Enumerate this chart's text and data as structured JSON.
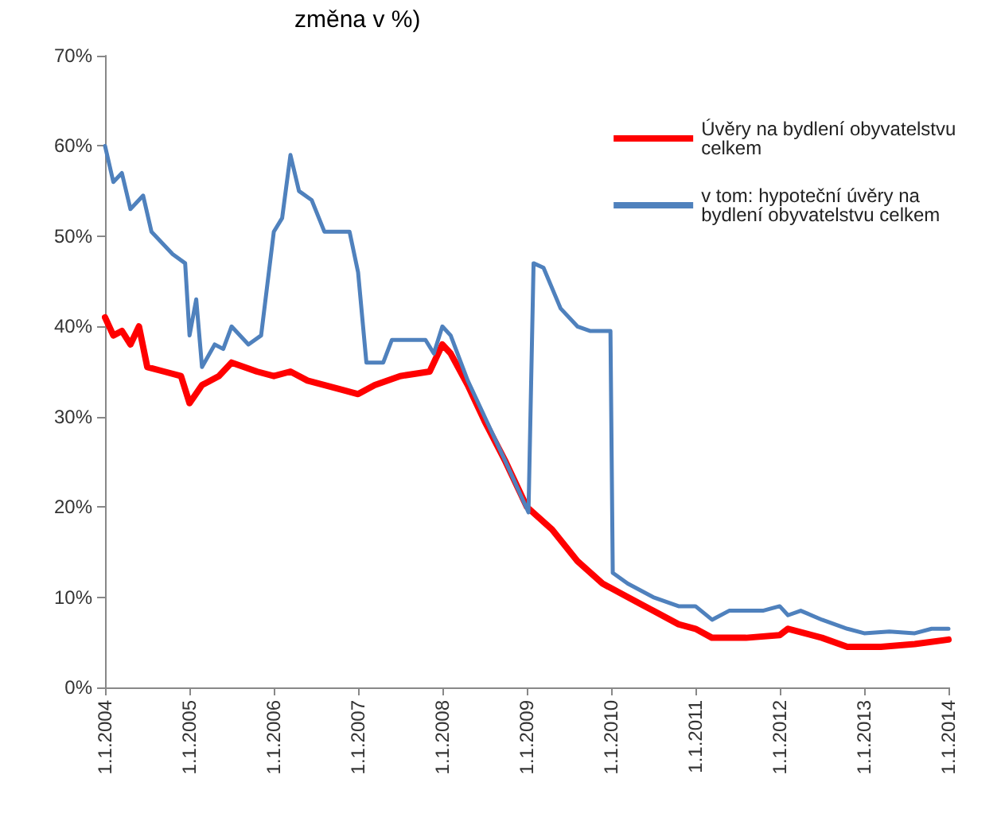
{
  "chart_data": {
    "type": "line",
    "title": "změna v %)",
    "series": [
      {
        "name": "Úvěry na bydlení obyvatelstvu celkem",
        "color": "#ff0000",
        "x": [
          "2004-01-01",
          "2004-02-06",
          "2004-03-14",
          "2004-04-20",
          "2004-05-27",
          "2004-07-02",
          "2004-09-13",
          "2004-11-25",
          "2005-01-01",
          "2005-02-24",
          "2005-05-08",
          "2005-07-02",
          "2005-10-20",
          "2006-01-01",
          "2006-03-14",
          "2006-05-27",
          "2006-10-20",
          "2007-01-01",
          "2007-03-14",
          "2007-07-02",
          "2007-11-07",
          "2008-01-01",
          "2008-02-06",
          "2008-04-20",
          "2008-07-02",
          "2008-10-01",
          "2009-01-01",
          "2009-04-20",
          "2009-08-08",
          "2009-11-25",
          "2010-03-14",
          "2010-07-02",
          "2010-10-20",
          "2011-01-01",
          "2011-03-14",
          "2011-08-08",
          "2012-01-01",
          "2012-02-06",
          "2012-07-02",
          "2012-10-20",
          "2013-03-14",
          "2013-08-08",
          "2014-01-01"
        ],
        "values": [
          41,
          39,
          39.5,
          38,
          40,
          35.5,
          35,
          34.5,
          31.5,
          33.5,
          34.5,
          36,
          35,
          34.5,
          35,
          34,
          33,
          32.5,
          33.5,
          34.5,
          35,
          38,
          37,
          33.5,
          29.5,
          25,
          20,
          17.5,
          14,
          11.5,
          10,
          8.5,
          7,
          6.5,
          5.5,
          5.5,
          5.8,
          6.5,
          5.5,
          4.5,
          4.5,
          4.8,
          5.3
        ]
      },
      {
        "name": "v tom: hypoteční úvěry na bydlení obyvatelstvu celkem",
        "color": "#4f81bd",
        "x": [
          "2004-01-01",
          "2004-02-06",
          "2004-03-14",
          "2004-04-20",
          "2004-06-14",
          "2004-07-20",
          "2004-10-20",
          "2004-12-13",
          "2005-01-01",
          "2005-01-30",
          "2005-02-24",
          "2005-04-20",
          "2005-05-27",
          "2005-07-02",
          "2005-09-13",
          "2005-11-07",
          "2006-01-01",
          "2006-02-06",
          "2006-03-14",
          "2006-04-20",
          "2006-06-14",
          "2006-08-08",
          "2006-11-25",
          "2007-01-01",
          "2007-02-06",
          "2007-04-20",
          "2007-05-27",
          "2007-10-20",
          "2007-11-25",
          "2008-01-01",
          "2008-02-06",
          "2008-04-20",
          "2008-07-02",
          "2008-10-01",
          "2009-01-08",
          "2009-01-30",
          "2009-03-14",
          "2009-05-27",
          "2009-08-08",
          "2009-10-01",
          "2009-12-29",
          "2010-01-08",
          "2010-03-14",
          "2010-07-02",
          "2010-10-20",
          "2011-01-01",
          "2011-03-14",
          "2011-05-27",
          "2011-10-20",
          "2012-01-01",
          "2012-02-06",
          "2012-04-01",
          "2012-07-02",
          "2012-10-20",
          "2013-01-01",
          "2013-04-20",
          "2013-08-08",
          "2013-10-20",
          "2014-01-01"
        ],
        "values": [
          60,
          56,
          57,
          53,
          54.5,
          50.5,
          48,
          47,
          39,
          43,
          35.5,
          38,
          37.5,
          40,
          38,
          39,
          50.5,
          52,
          59,
          55,
          54,
          50.5,
          50.5,
          46,
          36,
          36,
          38.5,
          38.5,
          37,
          40,
          39,
          34,
          30,
          25,
          19.4,
          47,
          46.5,
          42,
          40,
          39.5,
          39.5,
          12.7,
          11.5,
          10,
          9,
          9,
          7.5,
          8.5,
          8.5,
          9,
          8,
          8.5,
          7.5,
          6.5,
          6,
          6.2,
          6,
          6.5,
          6.5
        ]
      }
    ],
    "xlim": [
      "2004-01-01",
      "2014-01-01"
    ],
    "xticks": [
      {
        "value": "2004-01-01",
        "label": "1.1.2004"
      },
      {
        "value": "2005-01-01",
        "label": "1.1.2005"
      },
      {
        "value": "2006-01-01",
        "label": "1.1.2006"
      },
      {
        "value": "2007-01-01",
        "label": "1.1.2007"
      },
      {
        "value": "2008-01-01",
        "label": "1.1.2008"
      },
      {
        "value": "2009-01-01",
        "label": "1.1.2009"
      },
      {
        "value": "2010-01-01",
        "label": "1.1.2010"
      },
      {
        "value": "2011-01-01",
        "label": "1.1.2011"
      },
      {
        "value": "2012-01-01",
        "label": "1.1.2012"
      },
      {
        "value": "2013-01-01",
        "label": "1.1.2013"
      },
      {
        "value": "2014-01-01",
        "label": "1.1.2014"
      }
    ],
    "ylim": [
      0,
      70
    ],
    "yticks": [
      {
        "value": 0,
        "label": "0%"
      },
      {
        "value": 10,
        "label": "10%"
      },
      {
        "value": 20,
        "label": "20%"
      },
      {
        "value": 30,
        "label": "30%"
      },
      {
        "value": 40,
        "label": "40%"
      },
      {
        "value": 50,
        "label": "50%"
      },
      {
        "value": 60,
        "label": "60%"
      },
      {
        "value": 70,
        "label": "70%"
      }
    ],
    "grid": false,
    "legend": "top right",
    "marker": "none",
    "line_style": "solid"
  }
}
